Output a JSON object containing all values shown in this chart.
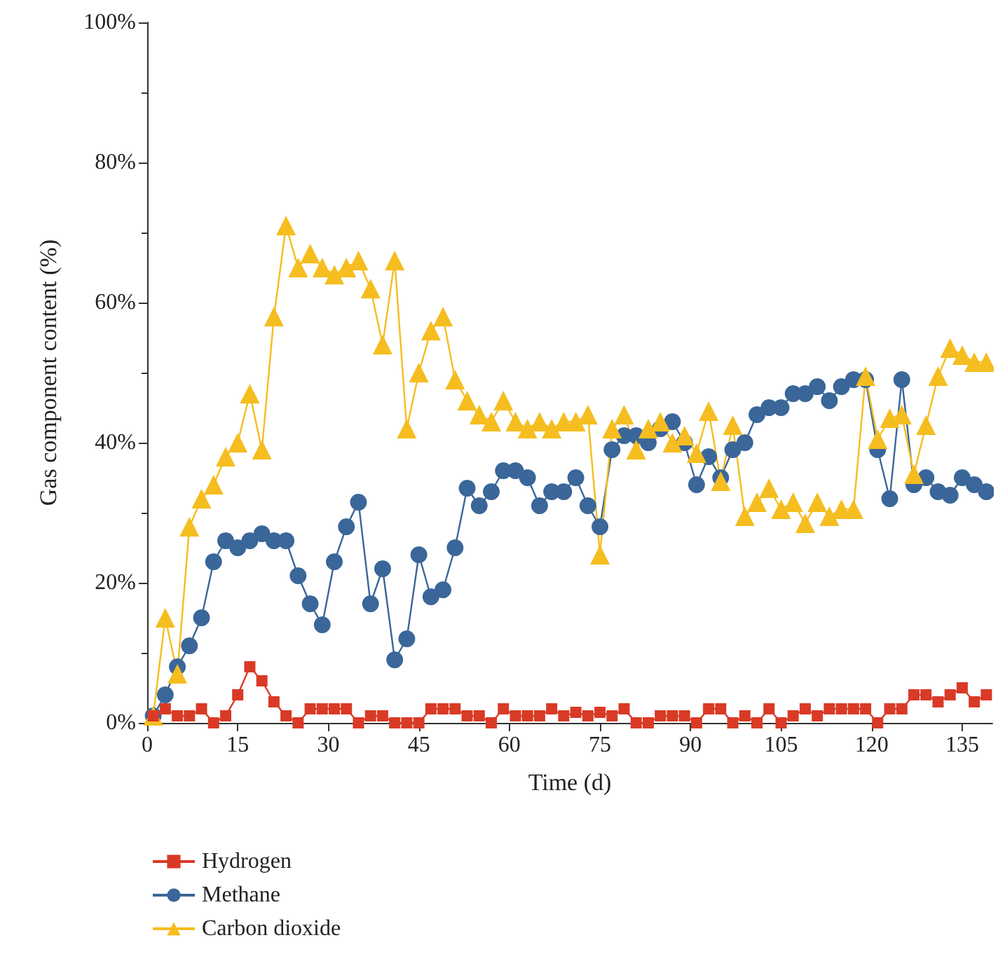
{
  "chart_data": {
    "type": "line",
    "xlabel": "Time (d)",
    "ylabel": "Gas component content (%)",
    "x": [
      1,
      3,
      5,
      7,
      9,
      11,
      13,
      15,
      17,
      19,
      21,
      23,
      25,
      27,
      29,
      31,
      33,
      35,
      37,
      39,
      41,
      43,
      45,
      47,
      49,
      51,
      53,
      55,
      57,
      59,
      61,
      63,
      65,
      67,
      69,
      71,
      73,
      75,
      77,
      79,
      81,
      83,
      85,
      87,
      89,
      91,
      93,
      95,
      97,
      99,
      101,
      103,
      105,
      107,
      109,
      111,
      113,
      115,
      117,
      119,
      121,
      123,
      125,
      127,
      129,
      131,
      133,
      135,
      137,
      139
    ],
    "series": [
      {
        "name": "Hydrogen",
        "color": "#d93a26",
        "marker": "square",
        "values": [
          1,
          2,
          1,
          1,
          2,
          0,
          1,
          4,
          8,
          6,
          3,
          1,
          0,
          2,
          2,
          2,
          2,
          0,
          1,
          1,
          0,
          0,
          0,
          2,
          2,
          2,
          1,
          1,
          0,
          2,
          1,
          1,
          1,
          2,
          1,
          1.5,
          1,
          1.5,
          1,
          2,
          0,
          0,
          1,
          1,
          1,
          0,
          2,
          2,
          0,
          1,
          0,
          2,
          0,
          1,
          2,
          1,
          2,
          2,
          2,
          2,
          0,
          2,
          2,
          4,
          4,
          3,
          4,
          5,
          3,
          4
        ]
      },
      {
        "name": "Methane",
        "color": "#3a6699",
        "marker": "circle",
        "values": [
          1,
          4,
          8,
          11,
          15,
          23,
          26,
          25,
          26,
          27,
          26,
          26,
          21,
          17,
          14,
          23,
          28,
          31.5,
          17,
          22,
          9,
          12,
          24,
          18,
          19,
          25,
          33.5,
          31,
          33,
          36,
          36,
          35,
          31,
          33,
          33,
          35,
          31,
          28,
          39,
          41,
          41,
          40,
          42,
          43,
          40,
          34,
          38,
          35,
          39,
          40,
          44,
          45,
          45,
          47,
          47,
          48,
          46,
          48,
          49,
          49,
          39,
          32,
          49,
          34,
          35,
          33,
          32.5,
          35,
          34,
          33
        ]
      },
      {
        "name": "Carbon dioxide",
        "color": "#f5bd1f",
        "marker": "triangle",
        "values": [
          1,
          15,
          7,
          28,
          32,
          34,
          38,
          40,
          47,
          39,
          58,
          71,
          65,
          67,
          65,
          64,
          65,
          66,
          62,
          54,
          66,
          42,
          50,
          56,
          58,
          49,
          46,
          44,
          43,
          46,
          43,
          42,
          43,
          42,
          43,
          43,
          44,
          24,
          42,
          44,
          39,
          42,
          43,
          40,
          41,
          38.5,
          44.5,
          34.5,
          42.5,
          29.5,
          31.5,
          33.5,
          30.5,
          31.5,
          28.5,
          31.5,
          29.5,
          30.5,
          30.5,
          49.5,
          40.5,
          43.5,
          44,
          35.5,
          42.5,
          49.5,
          53.5,
          52.5,
          51.5,
          51.5
        ]
      }
    ],
    "xlim": [
      0,
      140
    ],
    "xticks": [
      0,
      15,
      30,
      45,
      60,
      75,
      90,
      105,
      120,
      135
    ],
    "ylim": [
      0,
      100
    ],
    "yticks": [
      {
        "value": 0,
        "label": "0%"
      },
      {
        "value": 20,
        "label": "20%"
      },
      {
        "value": 40,
        "label": "40%"
      },
      {
        "value": 60,
        "label": "60%"
      },
      {
        "value": 80,
        "label": "80%"
      },
      {
        "value": 100,
        "label": "100%"
      }
    ],
    "grid": false,
    "legend": "bottom left",
    "line_style": "solid"
  }
}
